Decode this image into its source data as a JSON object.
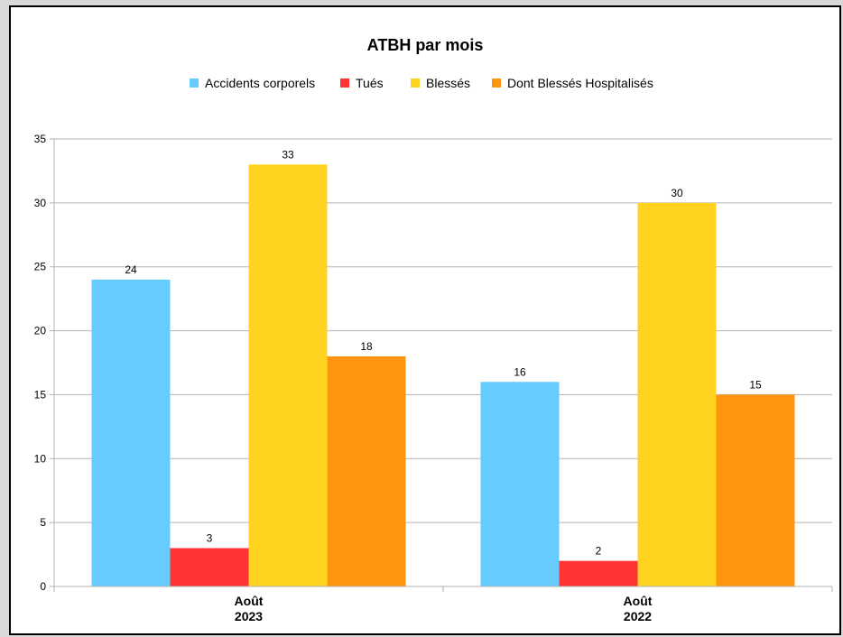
{
  "chart_data": {
    "type": "bar",
    "title": "ATBH par mois",
    "categories": [
      [
        "Août",
        "2023"
      ],
      [
        "Août",
        "2022"
      ]
    ],
    "series": [
      {
        "name": "Accidents corporels",
        "color": "#66ccff",
        "values": [
          24,
          16
        ]
      },
      {
        "name": "Tués",
        "color": "#ff3333",
        "values": [
          3,
          2
        ]
      },
      {
        "name": "Blessés",
        "color": "#ffd320",
        "values": [
          33,
          30
        ]
      },
      {
        "name": "Dont Blessés Hospitalisés",
        "color": "#ff950e",
        "values": [
          18,
          15
        ]
      }
    ],
    "ylim": [
      0,
      35
    ],
    "yticks": [
      0,
      5,
      10,
      15,
      20,
      25,
      30,
      35
    ],
    "grid": true,
    "legend_position": "top",
    "data_labels": true
  }
}
